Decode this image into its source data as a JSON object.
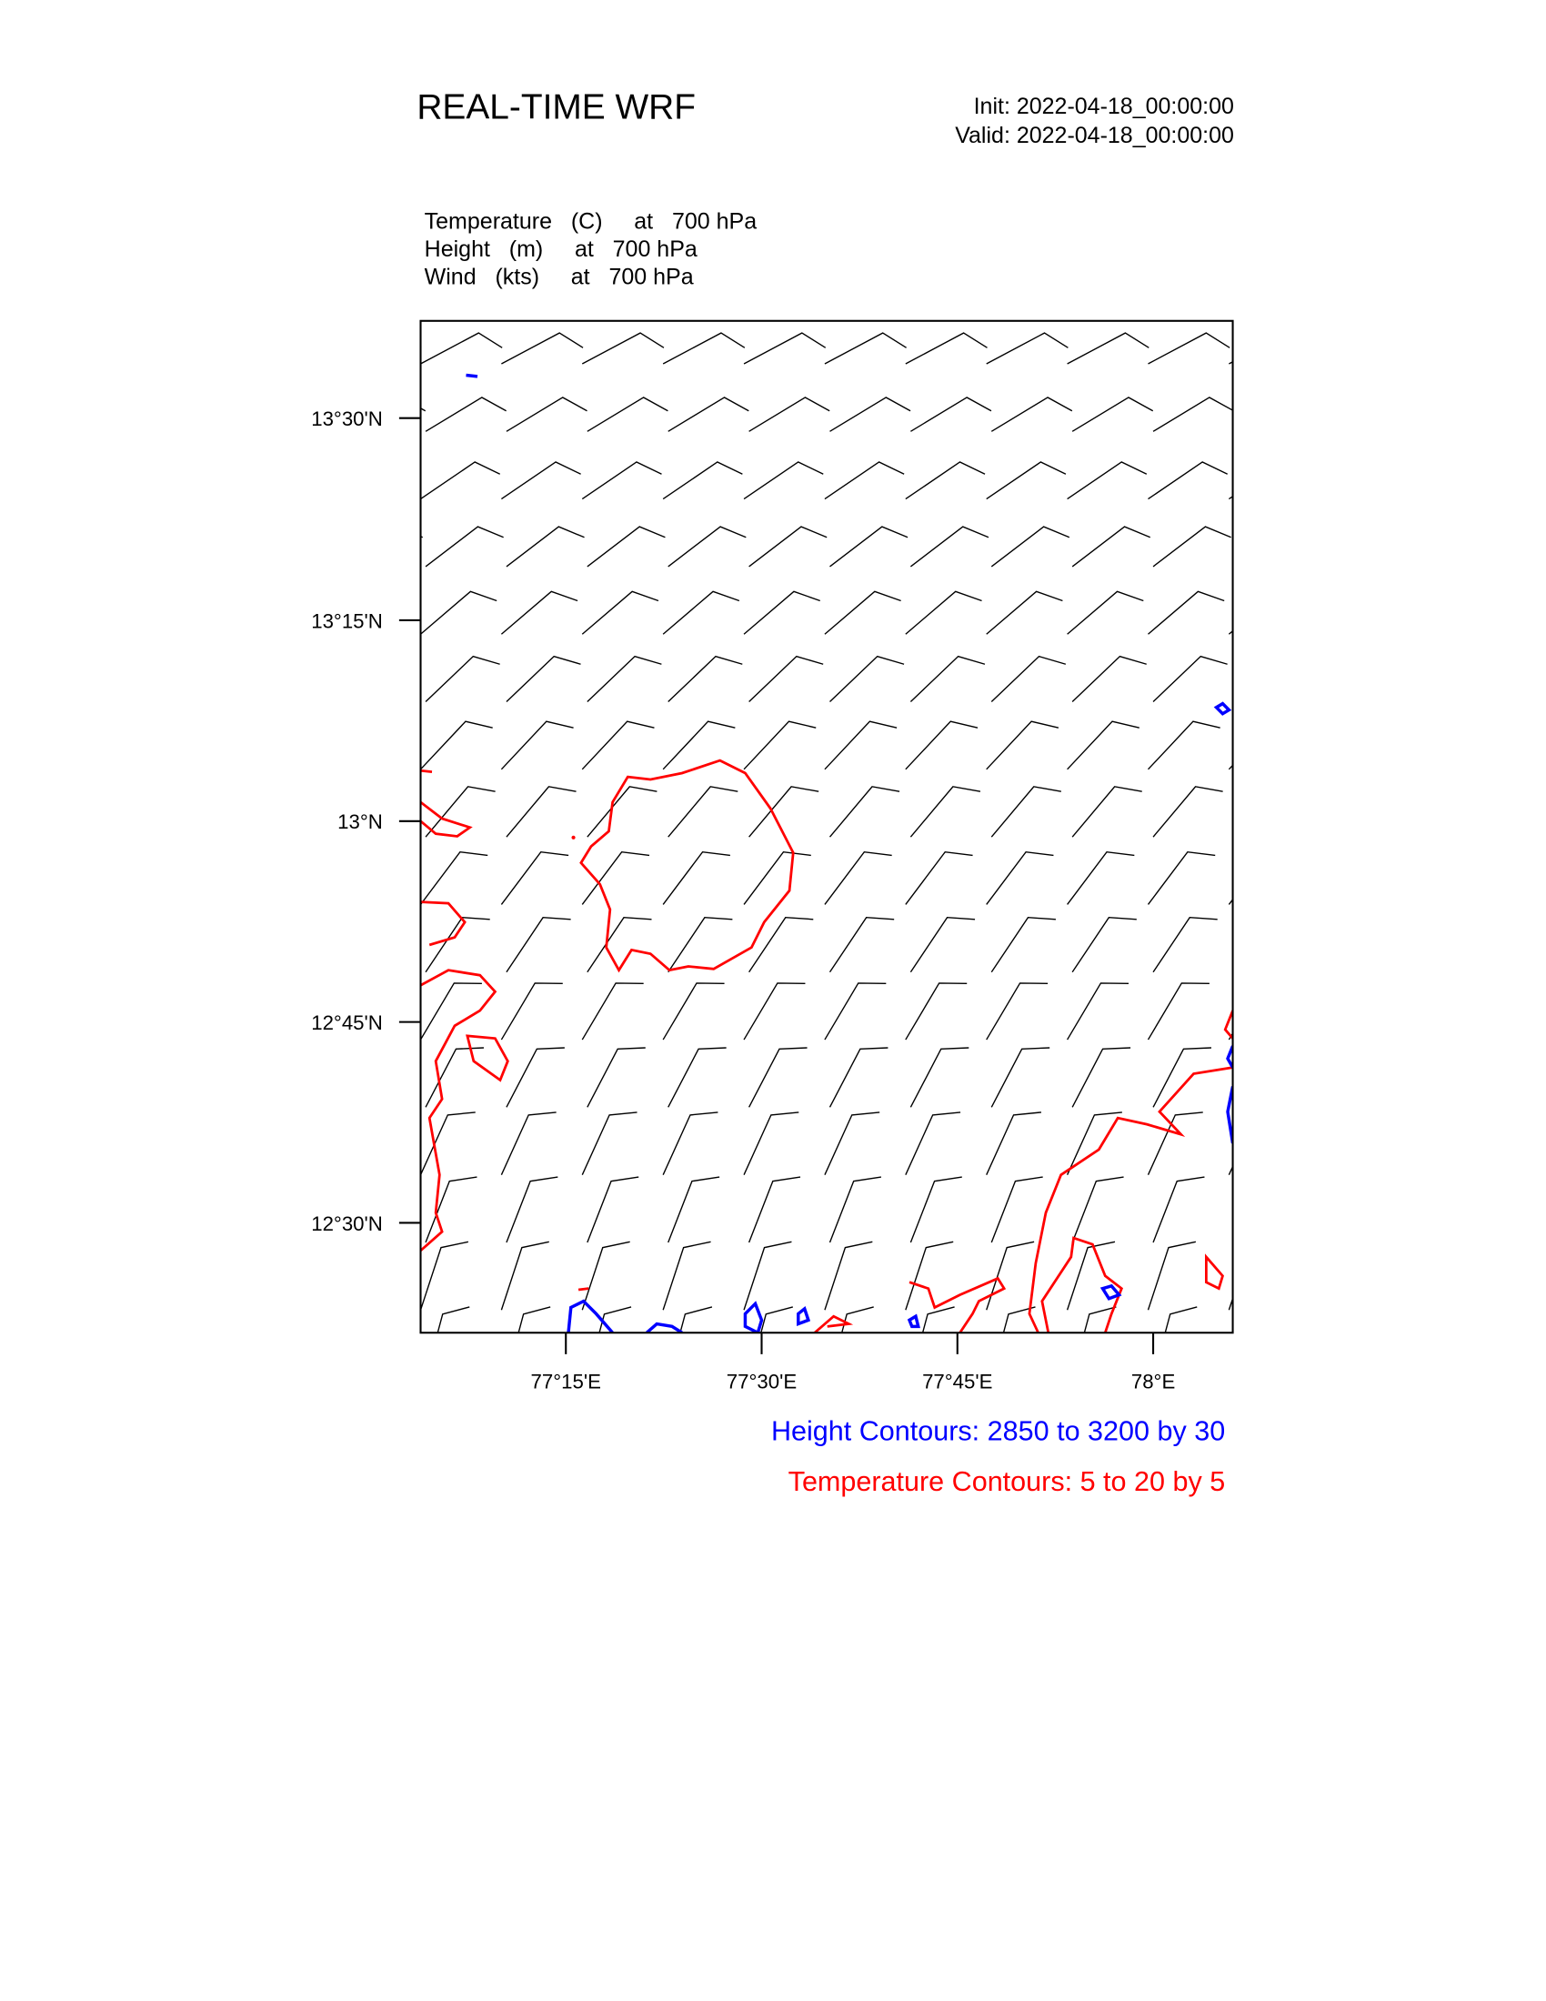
{
  "header": {
    "title": "REAL-TIME WRF",
    "init": "Init: 2022-04-18_00:00:00",
    "valid": "Valid: 2022-04-18_00:00:00"
  },
  "fields": [
    "Temperature   (C)     at   700 hPa",
    "Height   (m)     at   700 hPa",
    "Wind   (kts)     at   700 hPa"
  ],
  "axes": {
    "lat_labels": [
      "13°30'N",
      "13°15'N",
      "13°N",
      "12°45'N",
      "12°30'N"
    ],
    "lon_labels": [
      "77°15'E",
      "77°30'E",
      "77°45'E",
      "78°E"
    ]
  },
  "legend": {
    "height": "Height Contours: 2850 to 3200 by 30",
    "temperature": "Temperature Contours: 5 to 20 by 5"
  }
}
